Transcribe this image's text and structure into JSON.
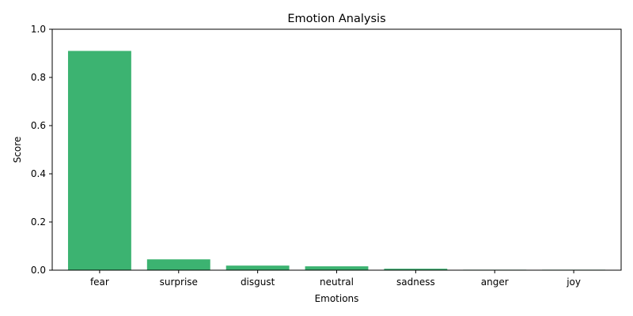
{
  "chart_data": {
    "type": "bar",
    "title": "Emotion Analysis",
    "xlabel": "Emotions",
    "ylabel": "Score",
    "categories": [
      "fear",
      "surprise",
      "disgust",
      "neutral",
      "sadness",
      "anger",
      "joy"
    ],
    "values": [
      0.91,
      0.045,
      0.019,
      0.016,
      0.006,
      0.002,
      0.002
    ],
    "ylim": [
      0,
      1
    ],
    "yticks": [
      "0.0",
      "0.2",
      "0.4",
      "0.6",
      "0.8",
      "1.0"
    ],
    "grid": false,
    "bar_color": "#3cb371"
  }
}
